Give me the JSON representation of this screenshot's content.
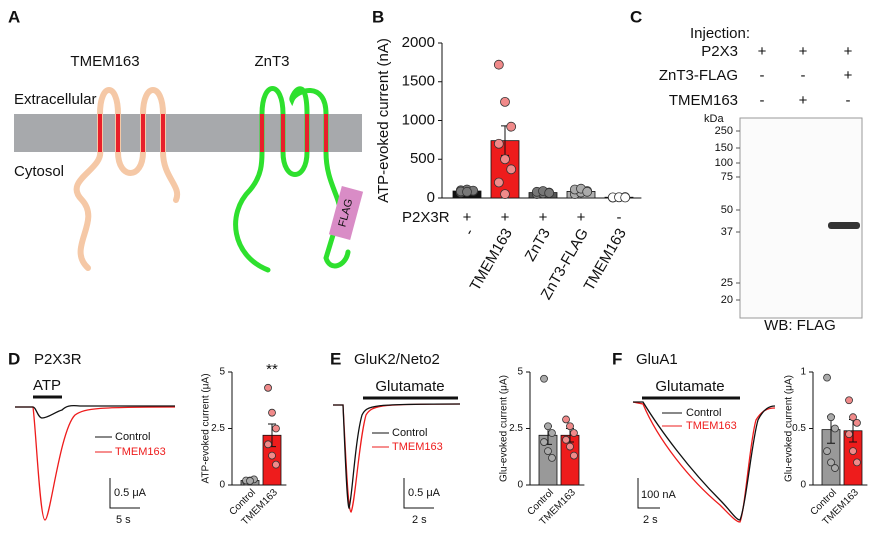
{
  "panels": {
    "A": {
      "letter": "A",
      "labels": [
        "TMEM163",
        "ZnT3"
      ],
      "extracellular": "Extracellular",
      "cytosol": "Cytosol",
      "tag": "FLAG"
    },
    "B": {
      "letter": "B"
    },
    "C": {
      "letter": "C",
      "injection": "Injection:",
      "rows": [
        {
          "label": "P2X3",
          "marks": [
            "+",
            "+",
            "+"
          ]
        },
        {
          "label": "ZnT3-FLAG",
          "marks": [
            "-",
            "-",
            "+"
          ]
        },
        {
          "label": "TMEM163",
          "marks": [
            "-",
            "+",
            "-"
          ]
        }
      ],
      "unit": "kDa",
      "markers": [
        "250",
        "150",
        "100",
        "75",
        "50",
        "37",
        "25",
        "20"
      ],
      "blot": "WB: FLAG"
    },
    "D": {
      "letter": "D",
      "title": "P2X3R",
      "stimulus": "ATP",
      "legend": [
        "Control",
        "TMEM163"
      ],
      "scale": [
        "0.5 μA",
        "5 s"
      ]
    },
    "E": {
      "letter": "E",
      "title": "GluK2/Neto2",
      "stimulus": "Glutamate",
      "legend": [
        "Control",
        "TMEM163"
      ],
      "scale": [
        "0.5 μA",
        "2 s"
      ]
    },
    "F": {
      "letter": "F",
      "title": "GluA1",
      "stimulus": "Glutamate",
      "legend": [
        "Control",
        "TMEM163"
      ],
      "scale": [
        "100 nA",
        "2 s"
      ]
    }
  },
  "chart_data": [
    {
      "type": "bar",
      "ylabel": "ATP-evoked current (nA)",
      "row_label": "P2X3R",
      "row_values": [
        "+",
        "+",
        "+",
        "+",
        "-"
      ],
      "categories": [
        "-",
        "TMEM163",
        "ZnT3",
        "ZnT3-FLAG",
        "TMEM163"
      ],
      "values": [
        90,
        740,
        70,
        85,
        10
      ],
      "errors": [
        10,
        190,
        8,
        20,
        3
      ],
      "points": [
        [
          70,
          80,
          90,
          100,
          110,
          95,
          85,
          80
        ],
        [
          1720,
          1240,
          920,
          700,
          500,
          370,
          200,
          50
        ],
        [
          50,
          60,
          70,
          80,
          90,
          65
        ],
        [
          50,
          70,
          90,
          110,
          120,
          80
        ],
        [
          5,
          10,
          12,
          8,
          10,
          6
        ]
      ],
      "colors": [
        "#111111",
        "#ee1c1c",
        "#555555",
        "#b0b0b0",
        "#ffffff"
      ],
      "point_colors": [
        "#777777",
        "#f08a8a",
        "#777777",
        "#aaaaaa",
        "#ffffff"
      ],
      "ylim": [
        0,
        2000
      ],
      "yticks": [
        0,
        500,
        1000,
        1500,
        2000
      ]
    },
    {
      "type": "bar",
      "ylabel": "ATP-evoked current (μA)",
      "annotation": "**",
      "categories": [
        "Control",
        "TMEM163"
      ],
      "values": [
        0.2,
        2.2
      ],
      "errors": [
        0.05,
        0.5
      ],
      "points": [
        [
          0.15,
          0.2,
          0.25,
          0.2,
          0.18
        ],
        [
          4.3,
          3.2,
          2.5,
          1.8,
          1.3,
          0.9
        ]
      ],
      "colors": [
        "#999999",
        "#ee1c1c"
      ],
      "point_colors": [
        "#aaaaaa",
        "#f08a8a"
      ],
      "ylim": [
        0,
        5
      ],
      "yticks": [
        0,
        2.5,
        5
      ]
    },
    {
      "type": "bar",
      "ylabel": "Glu-evoked current (μA)",
      "categories": [
        "Control",
        "TMEM163"
      ],
      "values": [
        2.2,
        2.2
      ],
      "errors": [
        0.4,
        0.3
      ],
      "points": [
        [
          4.7,
          2.6,
          2.3,
          1.9,
          1.5,
          1.2
        ],
        [
          2.9,
          2.6,
          2.3,
          2.0,
          1.7,
          1.3
        ]
      ],
      "colors": [
        "#999999",
        "#ee1c1c"
      ],
      "point_colors": [
        "#aaaaaa",
        "#f08a8a"
      ],
      "ylim": [
        0,
        5
      ],
      "yticks": [
        0,
        2.5,
        5
      ]
    },
    {
      "type": "bar",
      "ylabel": "Glu-evoked current (μA)",
      "categories": [
        "Control",
        "TMEM163"
      ],
      "values": [
        0.49,
        0.48
      ],
      "errors": [
        0.12,
        0.1
      ],
      "points": [
        [
          0.95,
          0.6,
          0.5,
          0.3,
          0.2,
          0.15
        ],
        [
          0.75,
          0.6,
          0.55,
          0.45,
          0.3,
          0.2
        ]
      ],
      "colors": [
        "#999999",
        "#ee1c1c"
      ],
      "point_colors": [
        "#aaaaaa",
        "#f08a8a"
      ],
      "ylim": [
        0,
        1
      ],
      "yticks": [
        0,
        0.5,
        1
      ]
    }
  ]
}
